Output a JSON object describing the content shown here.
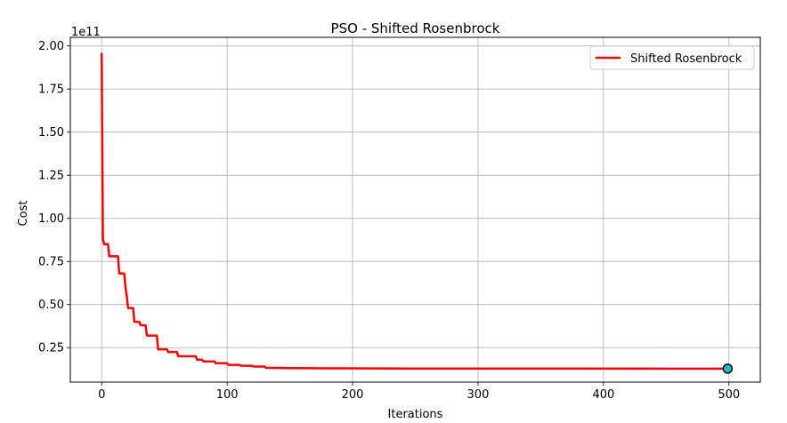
{
  "chart_data": {
    "type": "line",
    "title": "PSO - Shifted Rosenbrock",
    "xlabel": "Iterations",
    "ylabel": "Cost",
    "y_scale_label": "1e11",
    "y_multiplier": 100000000000,
    "xlim": [
      -25,
      525
    ],
    "ylim": [
      0.05,
      2.05
    ],
    "x_ticks": [
      0,
      100,
      200,
      300,
      400,
      500
    ],
    "x_tick_labels": [
      "0",
      "100",
      "200",
      "300",
      "400",
      "500"
    ],
    "y_ticks": [
      0.25,
      0.5,
      0.75,
      1.0,
      1.25,
      1.5,
      1.75,
      2.0
    ],
    "y_tick_labels": [
      "0.25",
      "0.50",
      "0.75",
      "1.00",
      "1.25",
      "1.50",
      "1.75",
      "2.00"
    ],
    "grid": true,
    "legend_position": "top-right",
    "series": [
      {
        "name": "Shifted Rosenbrock",
        "color": "#ff0000",
        "x": [
          0,
          1,
          2,
          5,
          6,
          13,
          14,
          18,
          19,
          20,
          21,
          25,
          26,
          30,
          31,
          35,
          36,
          44,
          45,
          52,
          53,
          60,
          61,
          75,
          76,
          80,
          81,
          90,
          91,
          100,
          101,
          110,
          111,
          120,
          121,
          130,
          131,
          150,
          180,
          250,
          499
        ],
        "y": [
          1.96,
          0.88,
          0.85,
          0.85,
          0.78,
          0.78,
          0.68,
          0.68,
          0.6,
          0.55,
          0.48,
          0.48,
          0.4,
          0.4,
          0.38,
          0.38,
          0.32,
          0.32,
          0.24,
          0.24,
          0.225,
          0.225,
          0.2,
          0.2,
          0.18,
          0.18,
          0.17,
          0.17,
          0.16,
          0.16,
          0.15,
          0.15,
          0.145,
          0.145,
          0.14,
          0.14,
          0.133,
          0.131,
          0.13,
          0.129,
          0.128
        ]
      }
    ],
    "final_point": {
      "x": 499,
      "y": 0.128,
      "fill": "#17becf",
      "edge": "#000000"
    }
  }
}
